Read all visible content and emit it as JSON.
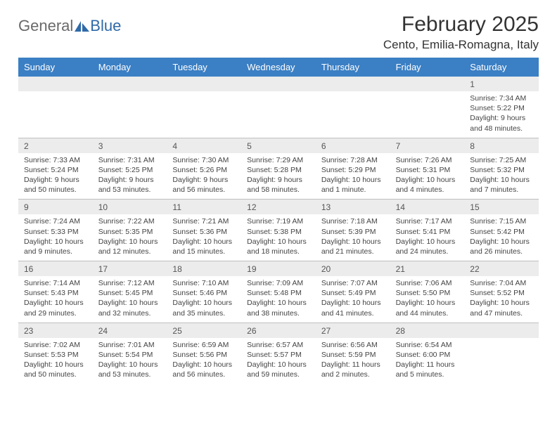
{
  "logo": {
    "text1": "General",
    "text2": "Blue",
    "icon_color": "#2f6aa8"
  },
  "title": "February 2025",
  "location": "Cento, Emilia-Romagna, Italy",
  "colors": {
    "header_bg": "#3b7fc4",
    "header_text": "#ffffff",
    "daynum_bg": "#ececec",
    "border": "#bfbfbf",
    "text": "#333333"
  },
  "dayNames": [
    "Sunday",
    "Monday",
    "Tuesday",
    "Wednesday",
    "Thursday",
    "Friday",
    "Saturday"
  ],
  "weeks": [
    [
      {
        "n": "",
        "sr": "",
        "ss": "",
        "dl": ""
      },
      {
        "n": "",
        "sr": "",
        "ss": "",
        "dl": ""
      },
      {
        "n": "",
        "sr": "",
        "ss": "",
        "dl": ""
      },
      {
        "n": "",
        "sr": "",
        "ss": "",
        "dl": ""
      },
      {
        "n": "",
        "sr": "",
        "ss": "",
        "dl": ""
      },
      {
        "n": "",
        "sr": "",
        "ss": "",
        "dl": ""
      },
      {
        "n": "1",
        "sr": "Sunrise: 7:34 AM",
        "ss": "Sunset: 5:22 PM",
        "dl": "Daylight: 9 hours and 48 minutes."
      }
    ],
    [
      {
        "n": "2",
        "sr": "Sunrise: 7:33 AM",
        "ss": "Sunset: 5:24 PM",
        "dl": "Daylight: 9 hours and 50 minutes."
      },
      {
        "n": "3",
        "sr": "Sunrise: 7:31 AM",
        "ss": "Sunset: 5:25 PM",
        "dl": "Daylight: 9 hours and 53 minutes."
      },
      {
        "n": "4",
        "sr": "Sunrise: 7:30 AM",
        "ss": "Sunset: 5:26 PM",
        "dl": "Daylight: 9 hours and 56 minutes."
      },
      {
        "n": "5",
        "sr": "Sunrise: 7:29 AM",
        "ss": "Sunset: 5:28 PM",
        "dl": "Daylight: 9 hours and 58 minutes."
      },
      {
        "n": "6",
        "sr": "Sunrise: 7:28 AM",
        "ss": "Sunset: 5:29 PM",
        "dl": "Daylight: 10 hours and 1 minute."
      },
      {
        "n": "7",
        "sr": "Sunrise: 7:26 AM",
        "ss": "Sunset: 5:31 PM",
        "dl": "Daylight: 10 hours and 4 minutes."
      },
      {
        "n": "8",
        "sr": "Sunrise: 7:25 AM",
        "ss": "Sunset: 5:32 PM",
        "dl": "Daylight: 10 hours and 7 minutes."
      }
    ],
    [
      {
        "n": "9",
        "sr": "Sunrise: 7:24 AM",
        "ss": "Sunset: 5:33 PM",
        "dl": "Daylight: 10 hours and 9 minutes."
      },
      {
        "n": "10",
        "sr": "Sunrise: 7:22 AM",
        "ss": "Sunset: 5:35 PM",
        "dl": "Daylight: 10 hours and 12 minutes."
      },
      {
        "n": "11",
        "sr": "Sunrise: 7:21 AM",
        "ss": "Sunset: 5:36 PM",
        "dl": "Daylight: 10 hours and 15 minutes."
      },
      {
        "n": "12",
        "sr": "Sunrise: 7:19 AM",
        "ss": "Sunset: 5:38 PM",
        "dl": "Daylight: 10 hours and 18 minutes."
      },
      {
        "n": "13",
        "sr": "Sunrise: 7:18 AM",
        "ss": "Sunset: 5:39 PM",
        "dl": "Daylight: 10 hours and 21 minutes."
      },
      {
        "n": "14",
        "sr": "Sunrise: 7:17 AM",
        "ss": "Sunset: 5:41 PM",
        "dl": "Daylight: 10 hours and 24 minutes."
      },
      {
        "n": "15",
        "sr": "Sunrise: 7:15 AM",
        "ss": "Sunset: 5:42 PM",
        "dl": "Daylight: 10 hours and 26 minutes."
      }
    ],
    [
      {
        "n": "16",
        "sr": "Sunrise: 7:14 AM",
        "ss": "Sunset: 5:43 PM",
        "dl": "Daylight: 10 hours and 29 minutes."
      },
      {
        "n": "17",
        "sr": "Sunrise: 7:12 AM",
        "ss": "Sunset: 5:45 PM",
        "dl": "Daylight: 10 hours and 32 minutes."
      },
      {
        "n": "18",
        "sr": "Sunrise: 7:10 AM",
        "ss": "Sunset: 5:46 PM",
        "dl": "Daylight: 10 hours and 35 minutes."
      },
      {
        "n": "19",
        "sr": "Sunrise: 7:09 AM",
        "ss": "Sunset: 5:48 PM",
        "dl": "Daylight: 10 hours and 38 minutes."
      },
      {
        "n": "20",
        "sr": "Sunrise: 7:07 AM",
        "ss": "Sunset: 5:49 PM",
        "dl": "Daylight: 10 hours and 41 minutes."
      },
      {
        "n": "21",
        "sr": "Sunrise: 7:06 AM",
        "ss": "Sunset: 5:50 PM",
        "dl": "Daylight: 10 hours and 44 minutes."
      },
      {
        "n": "22",
        "sr": "Sunrise: 7:04 AM",
        "ss": "Sunset: 5:52 PM",
        "dl": "Daylight: 10 hours and 47 minutes."
      }
    ],
    [
      {
        "n": "23",
        "sr": "Sunrise: 7:02 AM",
        "ss": "Sunset: 5:53 PM",
        "dl": "Daylight: 10 hours and 50 minutes."
      },
      {
        "n": "24",
        "sr": "Sunrise: 7:01 AM",
        "ss": "Sunset: 5:54 PM",
        "dl": "Daylight: 10 hours and 53 minutes."
      },
      {
        "n": "25",
        "sr": "Sunrise: 6:59 AM",
        "ss": "Sunset: 5:56 PM",
        "dl": "Daylight: 10 hours and 56 minutes."
      },
      {
        "n": "26",
        "sr": "Sunrise: 6:57 AM",
        "ss": "Sunset: 5:57 PM",
        "dl": "Daylight: 10 hours and 59 minutes."
      },
      {
        "n": "27",
        "sr": "Sunrise: 6:56 AM",
        "ss": "Sunset: 5:59 PM",
        "dl": "Daylight: 11 hours and 2 minutes."
      },
      {
        "n": "28",
        "sr": "Sunrise: 6:54 AM",
        "ss": "Sunset: 6:00 PM",
        "dl": "Daylight: 11 hours and 5 minutes."
      },
      {
        "n": "",
        "sr": "",
        "ss": "",
        "dl": ""
      }
    ]
  ]
}
